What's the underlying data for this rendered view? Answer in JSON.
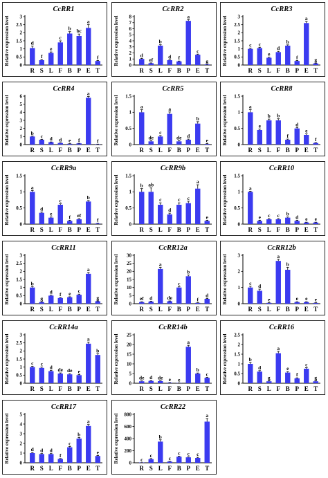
{
  "colors": {
    "bar": "#3b3bf0",
    "axis": "#000000"
  },
  "ylabel": "Relative expression level",
  "chart_data": [
    {
      "type": "bar",
      "title": "CcRR1",
      "ylabel": "Relative expression level",
      "categories": [
        "R",
        "S",
        "L",
        "F",
        "B",
        "P",
        "E",
        "T"
      ],
      "values": [
        1.05,
        0.3,
        0.75,
        1.4,
        1.95,
        1.8,
        2.3,
        0.25
      ],
      "errors": [
        0.12,
        0.04,
        0.06,
        0.1,
        0.12,
        0.12,
        0.2,
        0.03
      ],
      "letters": [
        "d",
        "f",
        "e",
        "c",
        "b",
        "bc",
        "a",
        "f"
      ],
      "ylim": [
        0,
        3
      ],
      "ticks": [
        "0",
        "0.5",
        "1",
        "1.5",
        "2",
        "2.5",
        "3"
      ]
    },
    {
      "type": "bar",
      "title": "CcRR2",
      "ylabel": "Relative expression level",
      "categories": [
        "R",
        "S",
        "L",
        "F",
        "B",
        "P",
        "E",
        "T"
      ],
      "values": [
        1.0,
        0.3,
        3.2,
        0.8,
        0.6,
        7.3,
        1.7,
        0.1
      ],
      "errors": [
        0.1,
        0.05,
        0.15,
        0.08,
        0.06,
        0.2,
        0.1,
        0.03
      ],
      "letters": [
        "d",
        "ef",
        "b",
        "d",
        "f",
        "a",
        "c",
        "g"
      ],
      "ylim": [
        0,
        8
      ],
      "ticks": [
        "0",
        "1",
        "2",
        "3",
        "4",
        "5",
        "6",
        "7",
        "8"
      ]
    },
    {
      "type": "bar",
      "title": "CcRR3",
      "ylabel": "Relative expression level",
      "categories": [
        "R",
        "S",
        "L",
        "F",
        "B",
        "P",
        "E",
        "T"
      ],
      "values": [
        1.0,
        1.05,
        0.45,
        0.8,
        1.2,
        0.25,
        2.6,
        0.1
      ],
      "errors": [
        0.05,
        0.05,
        0.04,
        0.05,
        0.05,
        0.03,
        0.1,
        0.02
      ],
      "letters": [
        "c",
        "c",
        "e",
        "d",
        "b",
        "f",
        "a",
        "g"
      ],
      "ylim": [
        0,
        3
      ],
      "ticks": [
        "0",
        "0.5",
        "1",
        "1.5",
        "2",
        "2.5",
        "3"
      ]
    },
    {
      "type": "bar",
      "title": "CcRR4",
      "ylabel": "Relative expression level",
      "categories": [
        "R",
        "S",
        "L",
        "F",
        "B",
        "P",
        "E",
        "T"
      ],
      "values": [
        1.0,
        0.6,
        0.3,
        0.2,
        0.1,
        0.15,
        5.8,
        0.05
      ],
      "errors": [
        0.05,
        0.05,
        0.03,
        0.02,
        0.02,
        0.02,
        0.15,
        0.01
      ],
      "letters": [
        "b",
        "c",
        "d",
        "d",
        "e",
        "f",
        "a",
        "f"
      ],
      "ylim": [
        0,
        6
      ],
      "ticks": [
        "0",
        "1",
        "2",
        "3",
        "4",
        "5",
        "6"
      ]
    },
    {
      "type": "bar",
      "title": "CcRR5",
      "ylabel": "Relative expression level",
      "categories": [
        "R",
        "S",
        "L",
        "F",
        "B",
        "P",
        "E",
        "T"
      ],
      "values": [
        1.0,
        0.1,
        0.25,
        0.95,
        0.1,
        0.15,
        0.65,
        0.02
      ],
      "errors": [
        0.08,
        0.02,
        0.03,
        0.06,
        0.02,
        0.02,
        0.06,
        0.01
      ],
      "letters": [
        "a",
        "de",
        "c",
        "a",
        "de",
        "d",
        "b",
        "e"
      ],
      "ylim": [
        0,
        1.5
      ],
      "ticks": [
        "0",
        "0.5",
        "1",
        "1.5"
      ]
    },
    {
      "type": "bar",
      "title": "CcRR8",
      "ylabel": "Relative expression level",
      "categories": [
        "R",
        "S",
        "L",
        "F",
        "B",
        "P",
        "E",
        "T"
      ],
      "values": [
        1.0,
        0.45,
        0.75,
        0.75,
        0.15,
        0.5,
        0.3,
        0.05
      ],
      "errors": [
        0.08,
        0.03,
        0.04,
        0.05,
        0.02,
        0.03,
        0.03,
        0.01
      ],
      "letters": [
        "a",
        "e",
        "b",
        "b",
        "f",
        "d",
        "e",
        "f"
      ],
      "ylim": [
        0,
        1.5
      ],
      "ticks": [
        "0",
        "0.5",
        "1",
        "1.5"
      ]
    },
    {
      "type": "bar",
      "title": "CcRR9a",
      "ylabel": "Relative expression level",
      "categories": [
        "R",
        "S",
        "L",
        "F",
        "B",
        "P",
        "E",
        "T"
      ],
      "values": [
        1.0,
        0.35,
        0.2,
        0.6,
        0.1,
        0.15,
        0.7,
        0.02
      ],
      "errors": [
        0.04,
        0.03,
        0.02,
        0.03,
        0.02,
        0.02,
        0.03,
        0.01
      ],
      "letters": [
        "a",
        "d",
        "e",
        "c",
        "f",
        "ef",
        "b",
        "f"
      ],
      "ylim": [
        0,
        1.5
      ],
      "ticks": [
        "0",
        "0.5",
        "1",
        "1.5"
      ]
    },
    {
      "type": "bar",
      "title": "CcRR9b",
      "ylabel": "Relative expression level",
      "categories": [
        "R",
        "S",
        "L",
        "F",
        "B",
        "P",
        "E",
        "T"
      ],
      "values": [
        1.0,
        1.0,
        0.6,
        0.3,
        0.6,
        0.65,
        1.1,
        0.1
      ],
      "errors": [
        0.1,
        0.12,
        0.06,
        0.04,
        0.06,
        0.06,
        0.12,
        0.02
      ],
      "letters": [
        "b",
        "ab",
        "c",
        "d",
        "c",
        "c",
        "a",
        "e"
      ],
      "ylim": [
        0,
        1.5
      ],
      "ticks": [
        "0",
        "0.5",
        "1",
        "1.5"
      ]
    },
    {
      "type": "bar",
      "title": "CcRR10",
      "ylabel": "Relative expression level",
      "categories": [
        "R",
        "S",
        "L",
        "F",
        "B",
        "P",
        "E",
        "T"
      ],
      "values": [
        1.0,
        0.1,
        0.15,
        0.15,
        0.2,
        0.1,
        0.05,
        0.05
      ],
      "errors": [
        0.02,
        0.02,
        0.02,
        0.02,
        0.02,
        0.02,
        0.01,
        0.01
      ],
      "letters": [
        "a",
        "e",
        "c",
        "c",
        "b",
        "d",
        "e",
        "e"
      ],
      "ylim": [
        0,
        1.5
      ],
      "ticks": [
        "0",
        "0.5",
        "1",
        "1.5"
      ]
    },
    {
      "type": "bar",
      "title": "CcRR11",
      "ylabel": "Relative expression level",
      "categories": [
        "R",
        "S",
        "L",
        "F",
        "B",
        "P",
        "E",
        "T"
      ],
      "values": [
        1.0,
        0.1,
        0.5,
        0.35,
        0.4,
        0.55,
        1.85,
        0.15
      ],
      "errors": [
        0.06,
        0.02,
        0.03,
        0.03,
        0.03,
        0.04,
        0.08,
        0.02
      ],
      "letters": [
        "b",
        "g",
        "d",
        "f",
        "e",
        "c",
        "a",
        "g"
      ],
      "ylim": [
        0,
        3
      ],
      "ticks": [
        "0",
        "0.5",
        "1",
        "1.5",
        "2",
        "2.5",
        "3"
      ]
    },
    {
      "type": "bar",
      "title": "CcRR12a",
      "ylabel": "Relative expression level",
      "categories": [
        "R",
        "S",
        "L",
        "F",
        "B",
        "P",
        "E",
        "T"
      ],
      "values": [
        1.0,
        1.3,
        21.5,
        1.5,
        10.0,
        17.0,
        0.5,
        3.0
      ],
      "errors": [
        0.2,
        0.2,
        1.0,
        0.2,
        0.5,
        0.8,
        0.1,
        0.3
      ],
      "letters": [
        "ef",
        "d",
        "a",
        "de",
        "c",
        "b",
        "f",
        "d"
      ],
      "ylim": [
        0,
        30
      ],
      "ticks": [
        "0",
        "5",
        "10",
        "15",
        "20",
        "25",
        "30"
      ]
    },
    {
      "type": "bar",
      "title": "CcRR12b",
      "ylabel": "Relative expression level",
      "categories": [
        "R",
        "S",
        "L",
        "F",
        "B",
        "P",
        "E",
        "T"
      ],
      "values": [
        1.0,
        0.8,
        0.05,
        2.65,
        2.1,
        0.1,
        0.1,
        0.05
      ],
      "errors": [
        0.08,
        0.1,
        0.01,
        0.1,
        0.15,
        0.02,
        0.02,
        0.01
      ],
      "letters": [
        "c",
        "d",
        "e",
        "a",
        "b",
        "e",
        "e",
        "e"
      ],
      "ylim": [
        0,
        3
      ],
      "ticks": [
        "0",
        "1",
        "2",
        "3"
      ]
    },
    {
      "type": "bar",
      "title": "CcRR14a",
      "ylabel": "Relative expression level",
      "categories": [
        "R",
        "S",
        "L",
        "F",
        "B",
        "P",
        "E",
        "T"
      ],
      "values": [
        1.0,
        0.95,
        0.75,
        0.6,
        0.55,
        0.5,
        2.45,
        1.75
      ],
      "errors": [
        0.05,
        0.05,
        0.05,
        0.04,
        0.04,
        0.04,
        0.1,
        0.08
      ],
      "letters": [
        "c",
        "c",
        "d",
        "de",
        "de",
        "e",
        "a",
        "b"
      ],
      "ylim": [
        0,
        3
      ],
      "ticks": [
        "0",
        "0.5",
        "1",
        "1.5",
        "2",
        "2.5",
        "3"
      ]
    },
    {
      "type": "bar",
      "title": "CcRR14b",
      "ylabel": "Relative expression level",
      "categories": [
        "R",
        "S",
        "L",
        "F",
        "B",
        "P",
        "E",
        "T"
      ],
      "values": [
        1.0,
        1.2,
        1.1,
        0.3,
        0.1,
        18.8,
        5.0,
        2.8
      ],
      "errors": [
        0.2,
        0.2,
        0.2,
        0.05,
        0.03,
        0.8,
        0.3,
        0.2
      ],
      "letters": [
        "de",
        "d",
        "de",
        "e",
        "e",
        "a",
        "b",
        "c"
      ],
      "ylim": [
        0,
        25
      ],
      "ticks": [
        "0",
        "5",
        "10",
        "15",
        "20",
        "25"
      ]
    },
    {
      "type": "bar",
      "title": "CcRR16",
      "ylabel": "Relative expression level",
      "categories": [
        "R",
        "S",
        "L",
        "F",
        "B",
        "P",
        "E",
        "T"
      ],
      "values": [
        1.0,
        0.6,
        0.1,
        1.55,
        0.55,
        0.25,
        0.75,
        0.1
      ],
      "errors": [
        0.08,
        0.05,
        0.02,
        0.1,
        0.05,
        0.03,
        0.05,
        0.02
      ],
      "letters": [
        "b",
        "d",
        "g",
        "a",
        "e",
        "f",
        "c",
        "g"
      ],
      "ylim": [
        0,
        2.5
      ],
      "ticks": [
        "0",
        "0.5",
        "1",
        "1.5",
        "2",
        "2.5"
      ]
    },
    {
      "type": "bar",
      "title": "CcRR17",
      "ylabel": "Relative expression level",
      "categories": [
        "R",
        "S",
        "L",
        "F",
        "B",
        "P",
        "E",
        "T"
      ],
      "values": [
        1.0,
        0.9,
        0.9,
        0.4,
        1.6,
        2.5,
        3.8,
        0.7
      ],
      "errors": [
        0.06,
        0.05,
        0.05,
        0.04,
        0.08,
        0.1,
        0.15,
        0.05
      ],
      "letters": [
        "d",
        "d",
        "d",
        "f",
        "c",
        "b",
        "a",
        "e"
      ],
      "ylim": [
        0,
        5
      ],
      "ticks": [
        "0",
        "1",
        "2",
        "3",
        "4",
        "5"
      ]
    },
    {
      "type": "bar",
      "title": "CcRR22",
      "ylabel": "Relative expression level",
      "categories": [
        "R",
        "S",
        "L",
        "F",
        "B",
        "P",
        "E",
        "T"
      ],
      "values": [
        1.0,
        60,
        350,
        20,
        100,
        90,
        80,
        680
      ],
      "errors": [
        1,
        10,
        30,
        5,
        10,
        10,
        10,
        50
      ],
      "letters": [
        "c",
        "c",
        "b",
        "c",
        "c",
        "c",
        "c",
        "a"
      ],
      "ylim": [
        0,
        800
      ],
      "ticks": [
        "0",
        "200",
        "400",
        "600",
        "800"
      ]
    }
  ]
}
